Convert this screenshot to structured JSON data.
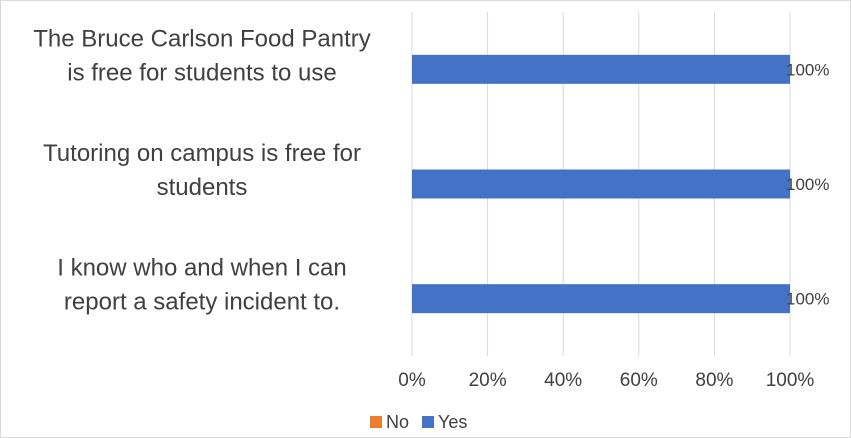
{
  "chart_data": {
    "type": "bar",
    "orientation": "horizontal",
    "categories": [
      [
        "The Bruce Carlson Food Pantry",
        "is free for students to use"
      ],
      [
        "Tutoring on campus is free for",
        "students"
      ],
      [
        "I know who and when I can",
        "report a safety incident to."
      ]
    ],
    "series": [
      {
        "name": "No",
        "color": "#ed7d31",
        "values": [
          0,
          0,
          0
        ]
      },
      {
        "name": "Yes",
        "color": "#4472c4",
        "values": [
          100,
          100,
          100
        ]
      }
    ],
    "data_labels": [
      "100%",
      "100%",
      "100%"
    ],
    "x_ticks": [
      "0%",
      "20%",
      "40%",
      "60%",
      "80%",
      "100%"
    ],
    "xlim": [
      0,
      100
    ],
    "stacked": true,
    "grid": "vertical",
    "legend_position": "bottom",
    "gridline_color": "#d9d9d9"
  }
}
